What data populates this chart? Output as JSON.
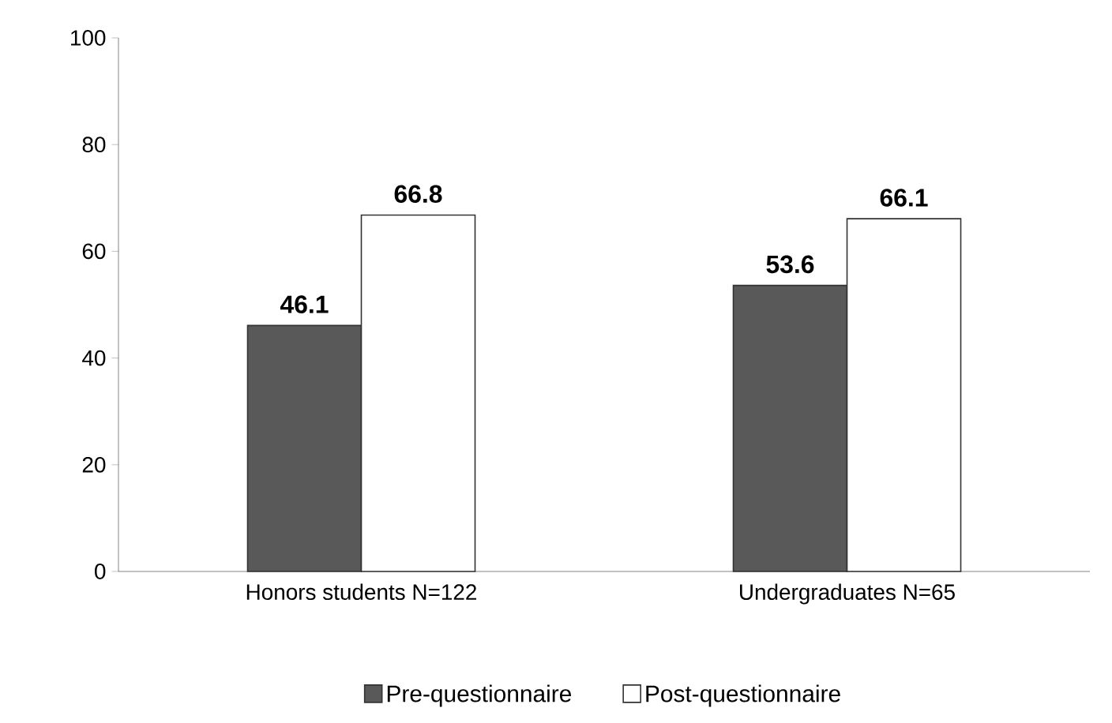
{
  "chart_data": {
    "type": "bar",
    "categories": [
      "Honors students N=122",
      "Undergraduates N=65"
    ],
    "series": [
      {
        "name": "Pre-questionnaire",
        "color": "#595959",
        "values": [
          46.1,
          53.6
        ]
      },
      {
        "name": "Post-questionnaire",
        "color": "#ffffff",
        "values": [
          66.8,
          66.1
        ]
      }
    ],
    "ylim": [
      0,
      100
    ],
    "yticks": [
      0,
      20,
      40,
      60,
      80,
      100
    ],
    "grid": false,
    "legend": "bottom",
    "data_labels": true
  }
}
